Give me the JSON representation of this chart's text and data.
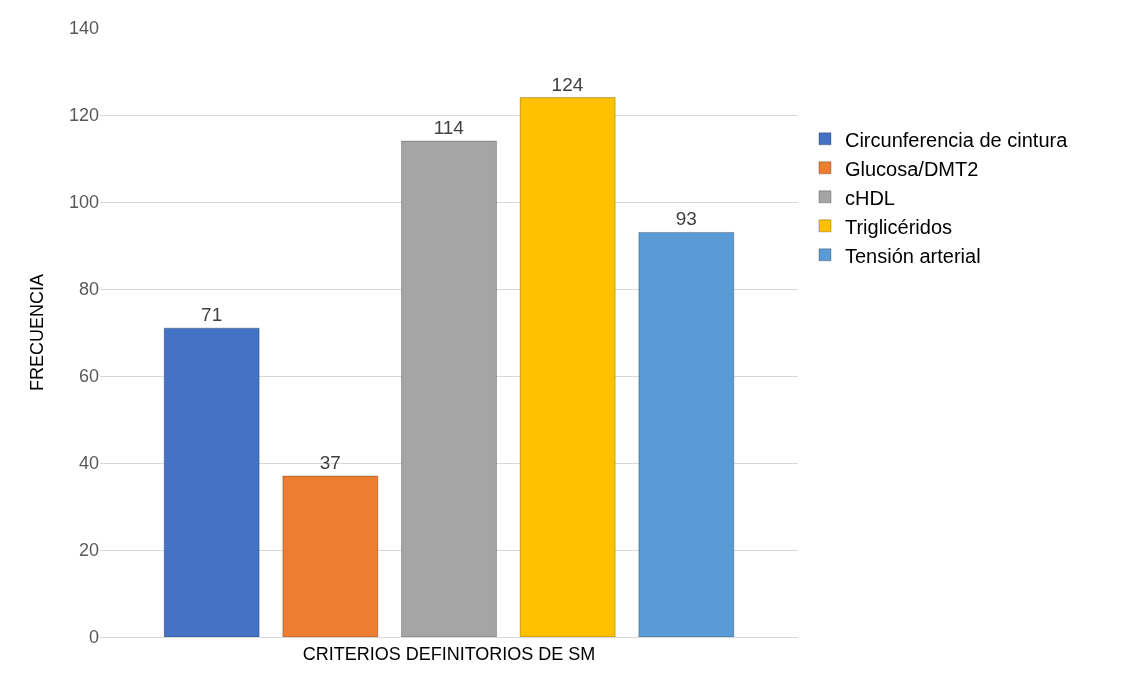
{
  "chart_data": {
    "type": "bar",
    "xlabel": null,
    "ylabel": "FRECUENCIA",
    "categories": [
      "CRITERIOS DEFINITORIOS DE SM"
    ],
    "series": [
      {
        "name": "Circunferencia de cintura",
        "color": "#4472c4",
        "values": [
          71
        ]
      },
      {
        "name": "Glucosa/DMT2",
        "color": "#ed7d31",
        "values": [
          37
        ]
      },
      {
        "name": "cHDL",
        "color": "#a5a5a5",
        "values": [
          114
        ]
      },
      {
        "name": "Triglicéridos",
        "color": "#ffc000",
        "values": [
          124
        ]
      },
      {
        "name": "Tensión arterial",
        "color": "#5b9bd5",
        "values": [
          93
        ]
      }
    ],
    "ylim": [
      0,
      140
    ],
    "yticks": [
      0,
      20,
      40,
      60,
      80,
      100,
      120,
      140
    ],
    "grid": "y",
    "legend": "right",
    "data_labels": true
  }
}
